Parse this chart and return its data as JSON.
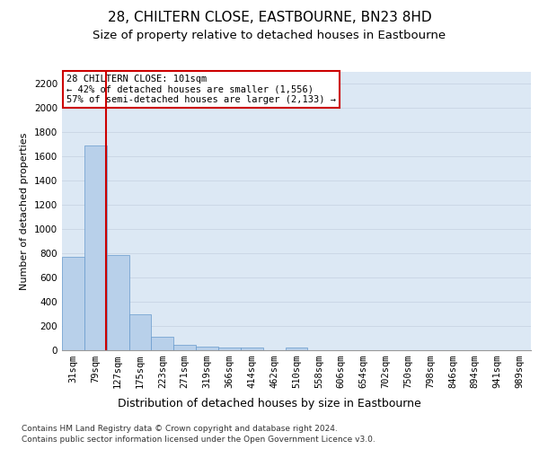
{
  "title1": "28, CHILTERN CLOSE, EASTBOURNE, BN23 8HD",
  "title2": "Size of property relative to detached houses in Eastbourne",
  "xlabel": "Distribution of detached houses by size in Eastbourne",
  "ylabel": "Number of detached properties",
  "categories": [
    "31sqm",
    "79sqm",
    "127sqm",
    "175sqm",
    "223sqm",
    "271sqm",
    "319sqm",
    "366sqm",
    "414sqm",
    "462sqm",
    "510sqm",
    "558sqm",
    "606sqm",
    "654sqm",
    "702sqm",
    "750sqm",
    "798sqm",
    "846sqm",
    "894sqm",
    "941sqm",
    "989sqm"
  ],
  "bar_values": [
    770,
    1690,
    790,
    300,
    110,
    45,
    30,
    25,
    20,
    0,
    20,
    0,
    0,
    0,
    0,
    0,
    0,
    0,
    0,
    0,
    0
  ],
  "bar_color": "#b8d0ea",
  "bar_edgecolor": "#6699cc",
  "grid_color": "#c8d4e4",
  "background_color": "#dce8f4",
  "vline_color": "#cc0000",
  "annotation_text": "28 CHILTERN CLOSE: 101sqm\n← 42% of detached houses are smaller (1,556)\n57% of semi-detached houses are larger (2,133) →",
  "annotation_box_color": "#cc0000",
  "ylim": [
    0,
    2300
  ],
  "yticks": [
    0,
    200,
    400,
    600,
    800,
    1000,
    1200,
    1400,
    1600,
    1800,
    2000,
    2200
  ],
  "footer1": "Contains HM Land Registry data © Crown copyright and database right 2024.",
  "footer2": "Contains public sector information licensed under the Open Government Licence v3.0.",
  "title1_fontsize": 11,
  "title2_fontsize": 9.5,
  "xlabel_fontsize": 9,
  "ylabel_fontsize": 8,
  "tick_fontsize": 7.5,
  "annot_fontsize": 7.5,
  "footer_fontsize": 6.5
}
